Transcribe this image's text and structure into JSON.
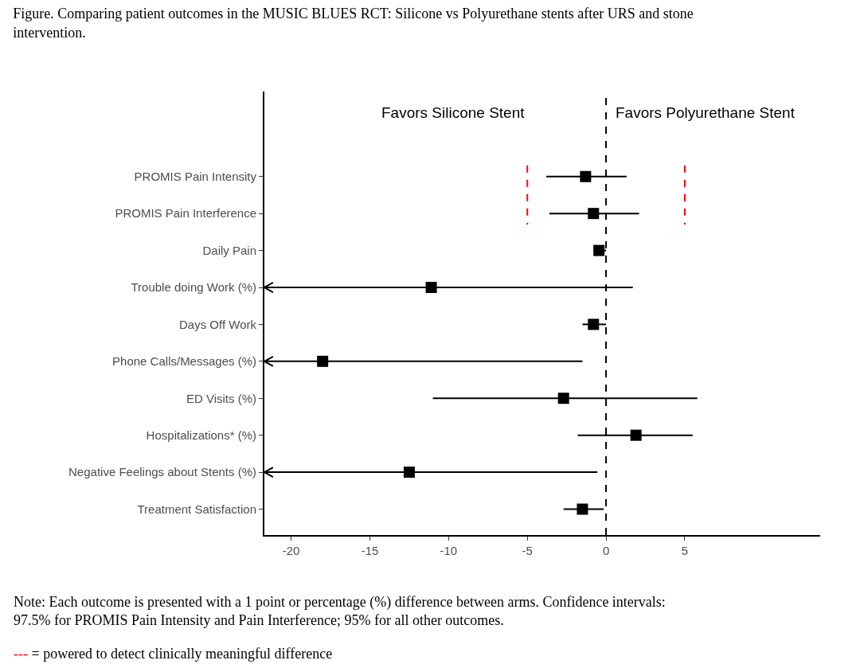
{
  "chart_data": {
    "type": "scatter",
    "orientation": "horizontal",
    "title": "Figure. Comparing patient outcomes in the MUSIC BLUES RCT: Silicone vs Polyurethane stents after URS and stone intervention.",
    "categories": [
      "PROMIS Pain Intensity",
      "PROMIS Pain Interference",
      "Daily Pain",
      "Trouble doing Work (%)",
      "Days Off Work",
      "Phone Calls/Messages (%)",
      "ED Visits (%)",
      "Hospitalizations* (%)",
      "Negative Feelings about Stents (%)",
      "Treatment Satisfaction"
    ],
    "series": [
      {
        "color": "#000000",
        "values": [
          -1.3,
          -0.8,
          -0.45,
          -11.1,
          -0.8,
          -18.0,
          -2.7,
          1.9,
          -12.5,
          -1.5
        ],
        "errors": [
          [
            -3.8,
            1.3
          ],
          [
            -3.6,
            2.1
          ],
          [
            -0.8,
            0.0
          ],
          [
            -21.7,
            1.7
          ],
          [
            -1.5,
            0.0
          ],
          [
            -21.7,
            -1.5
          ],
          [
            -11.0,
            5.8
          ],
          [
            -1.8,
            5.5
          ],
          [
            -21.7,
            -0.55
          ],
          [
            -2.7,
            -0.15
          ]
        ]
      }
    ],
    "xlim": [
      -21.7,
      13.6
    ],
    "xticks": [
      -20,
      -15,
      -10,
      -5,
      0,
      5
    ],
    "marker": "square",
    "ref_lines": [
      {
        "axis": "x",
        "value": 0,
        "color": "#000000",
        "line_style": "dashed"
      },
      {
        "axis": "x",
        "value": -5,
        "color": "#ff0000",
        "line_style": "dashed"
      },
      {
        "axis": "x",
        "value": 5,
        "color": "#ff0000",
        "line_style": "dashed"
      }
    ],
    "annotations": [
      "Favors Silicone Stent",
      "Favors Polyurethane Stent",
      "Note: Each outcome is presented with a 1 point or percentage (%) difference between arms. Confidence intervals: 97.5% for PROMIS Pain Intensity and Pain Interference; 95% for all other outcomes.",
      "--- = powered to detect clinically meaningful difference"
    ]
  }
}
